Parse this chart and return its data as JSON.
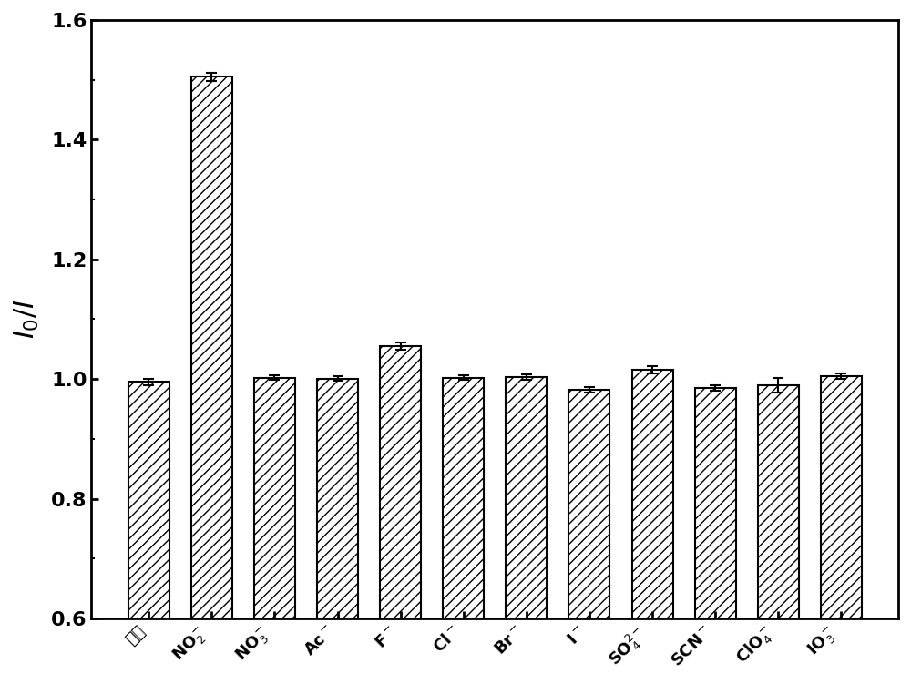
{
  "categories": [
    "空白",
    "NO$_2^-$",
    "NO$_3^-$",
    "Ac$^-$",
    "F$^-$",
    "Cl$^-$",
    "Br$^-$",
    "I$^-$",
    "SO$_4^{2-}$",
    "SCN$^-$",
    "ClO$_4^-$",
    "IO$_3^-$"
  ],
  "values": [
    0.995,
    1.505,
    1.002,
    1.001,
    1.055,
    1.002,
    1.003,
    0.982,
    1.015,
    0.985,
    0.99,
    1.005
  ],
  "errors": [
    0.005,
    0.007,
    0.004,
    0.004,
    0.006,
    0.004,
    0.005,
    0.005,
    0.006,
    0.005,
    0.012,
    0.005
  ],
  "ylim": [
    0.6,
    1.6
  ],
  "yticks": [
    0.6,
    0.8,
    1.0,
    1.2,
    1.4,
    1.6
  ],
  "ylabel": "$I_0/I$",
  "hatch": "///",
  "bar_color": "white",
  "edge_color": "black",
  "linewidth": 1.5,
  "bar_width": 0.65,
  "figsize": [
    10.0,
    7.51
  ],
  "dpi": 100,
  "capsize": 4,
  "elinewidth": 1.5,
  "capthick": 1.5,
  "spine_linewidth": 2.0,
  "ylabel_fontsize": 22,
  "ytick_fontsize": 16,
  "xtick_fontsize": 13
}
